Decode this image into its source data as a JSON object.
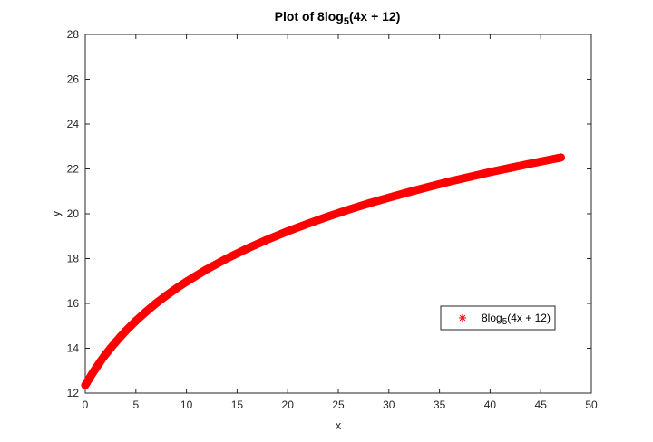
{
  "chart_data": {
    "type": "scatter",
    "title_main": "Plot of 8log",
    "title_sub": "5",
    "title_tail": "(4x + 12)",
    "xlabel": "x",
    "ylabel": "y",
    "xlim": [
      0,
      50
    ],
    "ylim": [
      12,
      28
    ],
    "xticks": [
      "0",
      "5",
      "10",
      "15",
      "20",
      "25",
      "30",
      "35",
      "40",
      "45",
      "50"
    ],
    "yticks": [
      "12",
      "14",
      "16",
      "18",
      "20",
      "22",
      "24",
      "26",
      "28"
    ],
    "grid": false,
    "legend_placement": "lower-right",
    "series": [
      {
        "name_main": "8log",
        "name_sub": "5",
        "name_tail": "(4x + 12)",
        "color": "#ff0000",
        "marker": "asterisk",
        "x": [
          0,
          0.2,
          0.4,
          0.6,
          0.8,
          1,
          1.5,
          2,
          2.5,
          3,
          3.5,
          4,
          5,
          6,
          7,
          8,
          9,
          10,
          12,
          14,
          16,
          18,
          20,
          22,
          24,
          26,
          28,
          30,
          32,
          34,
          36,
          38,
          40,
          42,
          44,
          46,
          47
        ],
        "y": [
          12.35,
          12.5,
          12.65,
          12.8,
          12.94,
          13.08,
          13.41,
          13.72,
          14.0,
          14.27,
          14.53,
          14.77,
          15.22,
          15.63,
          16.01,
          16.35,
          16.67,
          16.97,
          17.52,
          18.01,
          18.45,
          18.85,
          19.22,
          19.56,
          19.88,
          20.18,
          20.46,
          20.72,
          20.97,
          21.21,
          21.44,
          21.65,
          21.86,
          22.05,
          22.24,
          22.42,
          22.51
        ]
      }
    ]
  }
}
